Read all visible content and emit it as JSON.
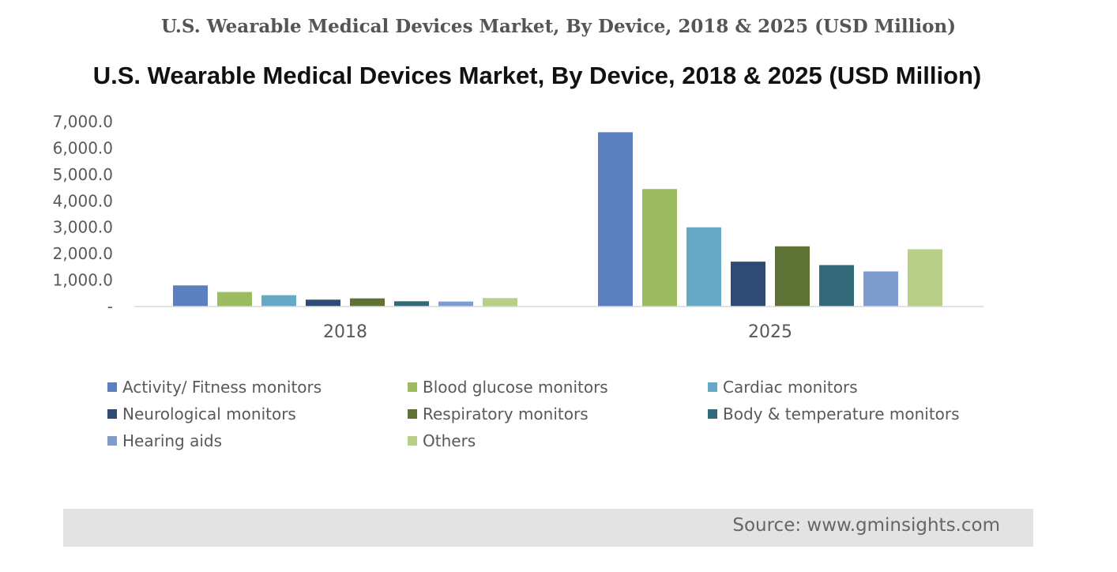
{
  "page": {
    "heading": "U.S. Wearable Medical Devices Market, By Device, 2018 & 2025 (USD Million)",
    "source": "Source: www.gminsights.com"
  },
  "chart_data": {
    "type": "bar",
    "title": "U.S. Wearable Medical Devices Market, By Device, 2018 & 2025 (USD Million)",
    "categories": [
      "2018",
      "2025"
    ],
    "ylim": [
      0,
      7000
    ],
    "yticks": [
      {
        "value": 0,
        "label": "-"
      },
      {
        "value": 1000,
        "label": "1,000.0"
      },
      {
        "value": 2000,
        "label": "2,000.0"
      },
      {
        "value": 3000,
        "label": "3,000.0"
      },
      {
        "value": 4000,
        "label": "4,000.0"
      },
      {
        "value": 5000,
        "label": "5,000.0"
      },
      {
        "value": 6000,
        "label": "6,000.0"
      },
      {
        "value": 7000,
        "label": "7,000.0"
      }
    ],
    "grid": false,
    "legend_position": "bottom",
    "series": [
      {
        "name": "Activity/ Fitness monitors",
        "color": "#5b7fbf",
        "values": [
          800,
          6600
        ]
      },
      {
        "name": "Blood glucose monitors",
        "color": "#9dbb61",
        "values": [
          550,
          4450
        ]
      },
      {
        "name": "Cardiac monitors",
        "color": "#65a9c6",
        "values": [
          430,
          3000
        ]
      },
      {
        "name": "Neurological monitors",
        "color": "#2e4a75",
        "values": [
          260,
          1700
        ]
      },
      {
        "name": "Respiratory monitors",
        "color": "#5e7236",
        "values": [
          310,
          2280
        ]
      },
      {
        "name": "Body & temperature monitors",
        "color": "#34697a",
        "values": [
          200,
          1570
        ]
      },
      {
        "name": "Hearing aids",
        "color": "#7f9cce",
        "values": [
          190,
          1330
        ]
      },
      {
        "name": "Others",
        "color": "#b7cf88",
        "values": [
          320,
          2170
        ]
      }
    ]
  }
}
